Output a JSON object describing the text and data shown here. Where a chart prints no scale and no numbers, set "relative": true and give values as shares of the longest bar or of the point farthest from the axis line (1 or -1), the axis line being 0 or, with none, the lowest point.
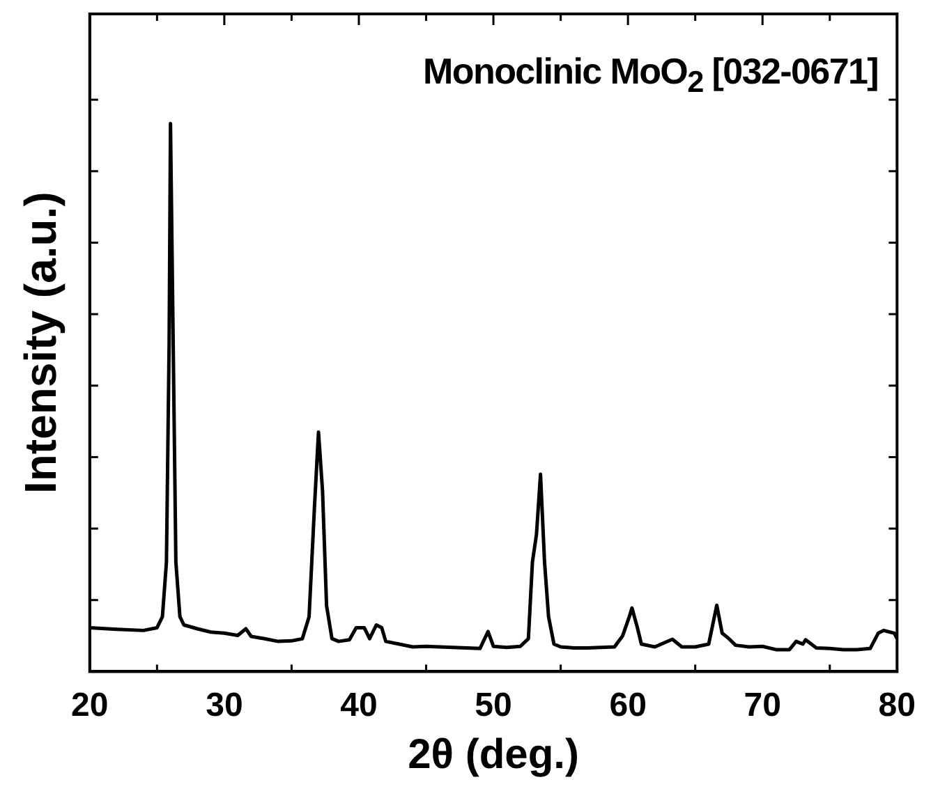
{
  "chart_data": {
    "type": "line",
    "relative": true,
    "xlabel": "2θ (deg.)",
    "ylabel": "Intensity (a.u.)",
    "annotations": [
      "Monoclinic MoO$_{2}$ [032-0671]"
    ],
    "xlim": [
      20,
      80
    ],
    "xticks": [
      20,
      30,
      40,
      50,
      60,
      70,
      80
    ],
    "marker": "none",
    "line_style": "solid",
    "legend": false,
    "grid": false,
    "series": [
      {
        "color": "#000000",
        "x": [
          20,
          22,
          24,
          25,
          25.4,
          25.7,
          25.9,
          26.0,
          26.15,
          26.4,
          26.7,
          27,
          28,
          29,
          30,
          31,
          31.6,
          32,
          33,
          34,
          35,
          35.8,
          36.3,
          36.7,
          37.0,
          37.3,
          37.6,
          38,
          38.5,
          39.3,
          39.8,
          40.4,
          40.8,
          41.3,
          41.7,
          42,
          43,
          44,
          45,
          46,
          47,
          48,
          49,
          49.6,
          50,
          51,
          52,
          52.6,
          52.9,
          53.2,
          53.5,
          53.8,
          54.1,
          54.5,
          55,
          56,
          57,
          58,
          59,
          59.6,
          60.1,
          60.3,
          60.7,
          61,
          62,
          63.3,
          64,
          65,
          66,
          66.6,
          67,
          67.5,
          68,
          69,
          70,
          71,
          72,
          72.5,
          73,
          73.2,
          74,
          75,
          76,
          77,
          78,
          78.6,
          79,
          79.8,
          80
        ],
        "values": [
          0.08,
          0.077,
          0.075,
          0.08,
          0.1,
          0.2,
          0.6,
          1.0,
          0.7,
          0.2,
          0.1,
          0.085,
          0.078,
          0.072,
          0.07,
          0.066,
          0.078,
          0.064,
          0.06,
          0.055,
          0.056,
          0.06,
          0.1,
          0.3,
          0.437,
          0.33,
          0.12,
          0.06,
          0.055,
          0.058,
          0.08,
          0.08,
          0.06,
          0.085,
          0.08,
          0.055,
          0.05,
          0.045,
          0.046,
          0.045,
          0.044,
          0.043,
          0.042,
          0.073,
          0.046,
          0.044,
          0.046,
          0.06,
          0.2,
          0.25,
          0.36,
          0.2,
          0.1,
          0.05,
          0.045,
          0.043,
          0.043,
          0.044,
          0.045,
          0.065,
          0.1,
          0.116,
          0.08,
          0.05,
          0.045,
          0.059,
          0.045,
          0.045,
          0.05,
          0.121,
          0.07,
          0.06,
          0.048,
          0.045,
          0.046,
          0.04,
          0.04,
          0.055,
          0.05,
          0.058,
          0.043,
          0.042,
          0.04,
          0.04,
          0.042,
          0.07,
          0.075,
          0.07,
          0.06
        ]
      }
    ]
  }
}
